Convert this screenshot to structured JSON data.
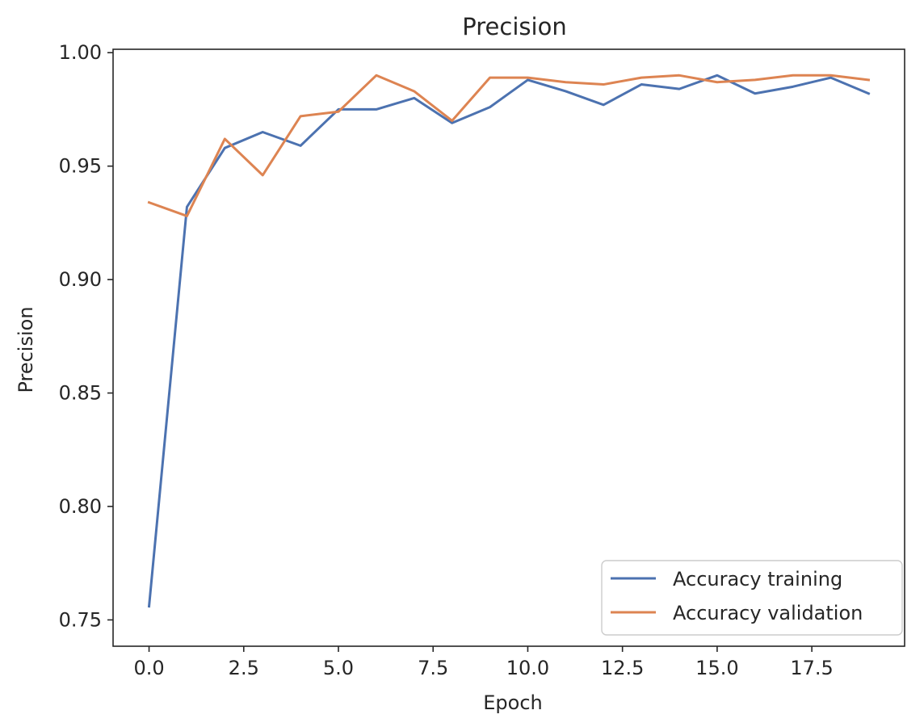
{
  "chart_data": {
    "type": "line",
    "title": "Precision",
    "xlabel": "Epoch",
    "ylabel": "Precision",
    "xlim": [
      -0.95,
      19.95
    ],
    "ylim": [
      0.7384,
      1.0015
    ],
    "xticks": [
      0.0,
      2.5,
      5.0,
      7.5,
      10.0,
      12.5,
      15.0,
      17.5
    ],
    "xtick_labels": [
      "0.0",
      "2.5",
      "5.0",
      "7.5",
      "10.0",
      "12.5",
      "15.0",
      "17.5"
    ],
    "yticks": [
      0.75,
      0.8,
      0.85,
      0.9,
      0.95,
      1.0
    ],
    "ytick_labels": [
      "0.75",
      "0.80",
      "0.85",
      "0.90",
      "0.95",
      "1.00"
    ],
    "grid": false,
    "legend_position": "bottom-right",
    "x": [
      0,
      1,
      2,
      3,
      4,
      5,
      6,
      7,
      8,
      9,
      10,
      11,
      12,
      13,
      14,
      15,
      16,
      17,
      18,
      19
    ],
    "series": [
      {
        "name": "Accuracy training",
        "color": "#4c72b0",
        "values": [
          0.756,
          0.932,
          0.958,
          0.965,
          0.959,
          0.975,
          0.975,
          0.98,
          0.969,
          0.976,
          0.988,
          0.983,
          0.977,
          0.986,
          0.984,
          0.99,
          0.982,
          0.985,
          0.989,
          0.982
        ]
      },
      {
        "name": "Accuracy validation",
        "color": "#dd8452",
        "values": [
          0.934,
          0.928,
          0.962,
          0.946,
          0.972,
          0.974,
          0.99,
          0.983,
          0.97,
          0.989,
          0.989,
          0.987,
          0.986,
          0.989,
          0.99,
          0.987,
          0.988,
          0.99,
          0.99,
          0.988
        ]
      }
    ]
  }
}
